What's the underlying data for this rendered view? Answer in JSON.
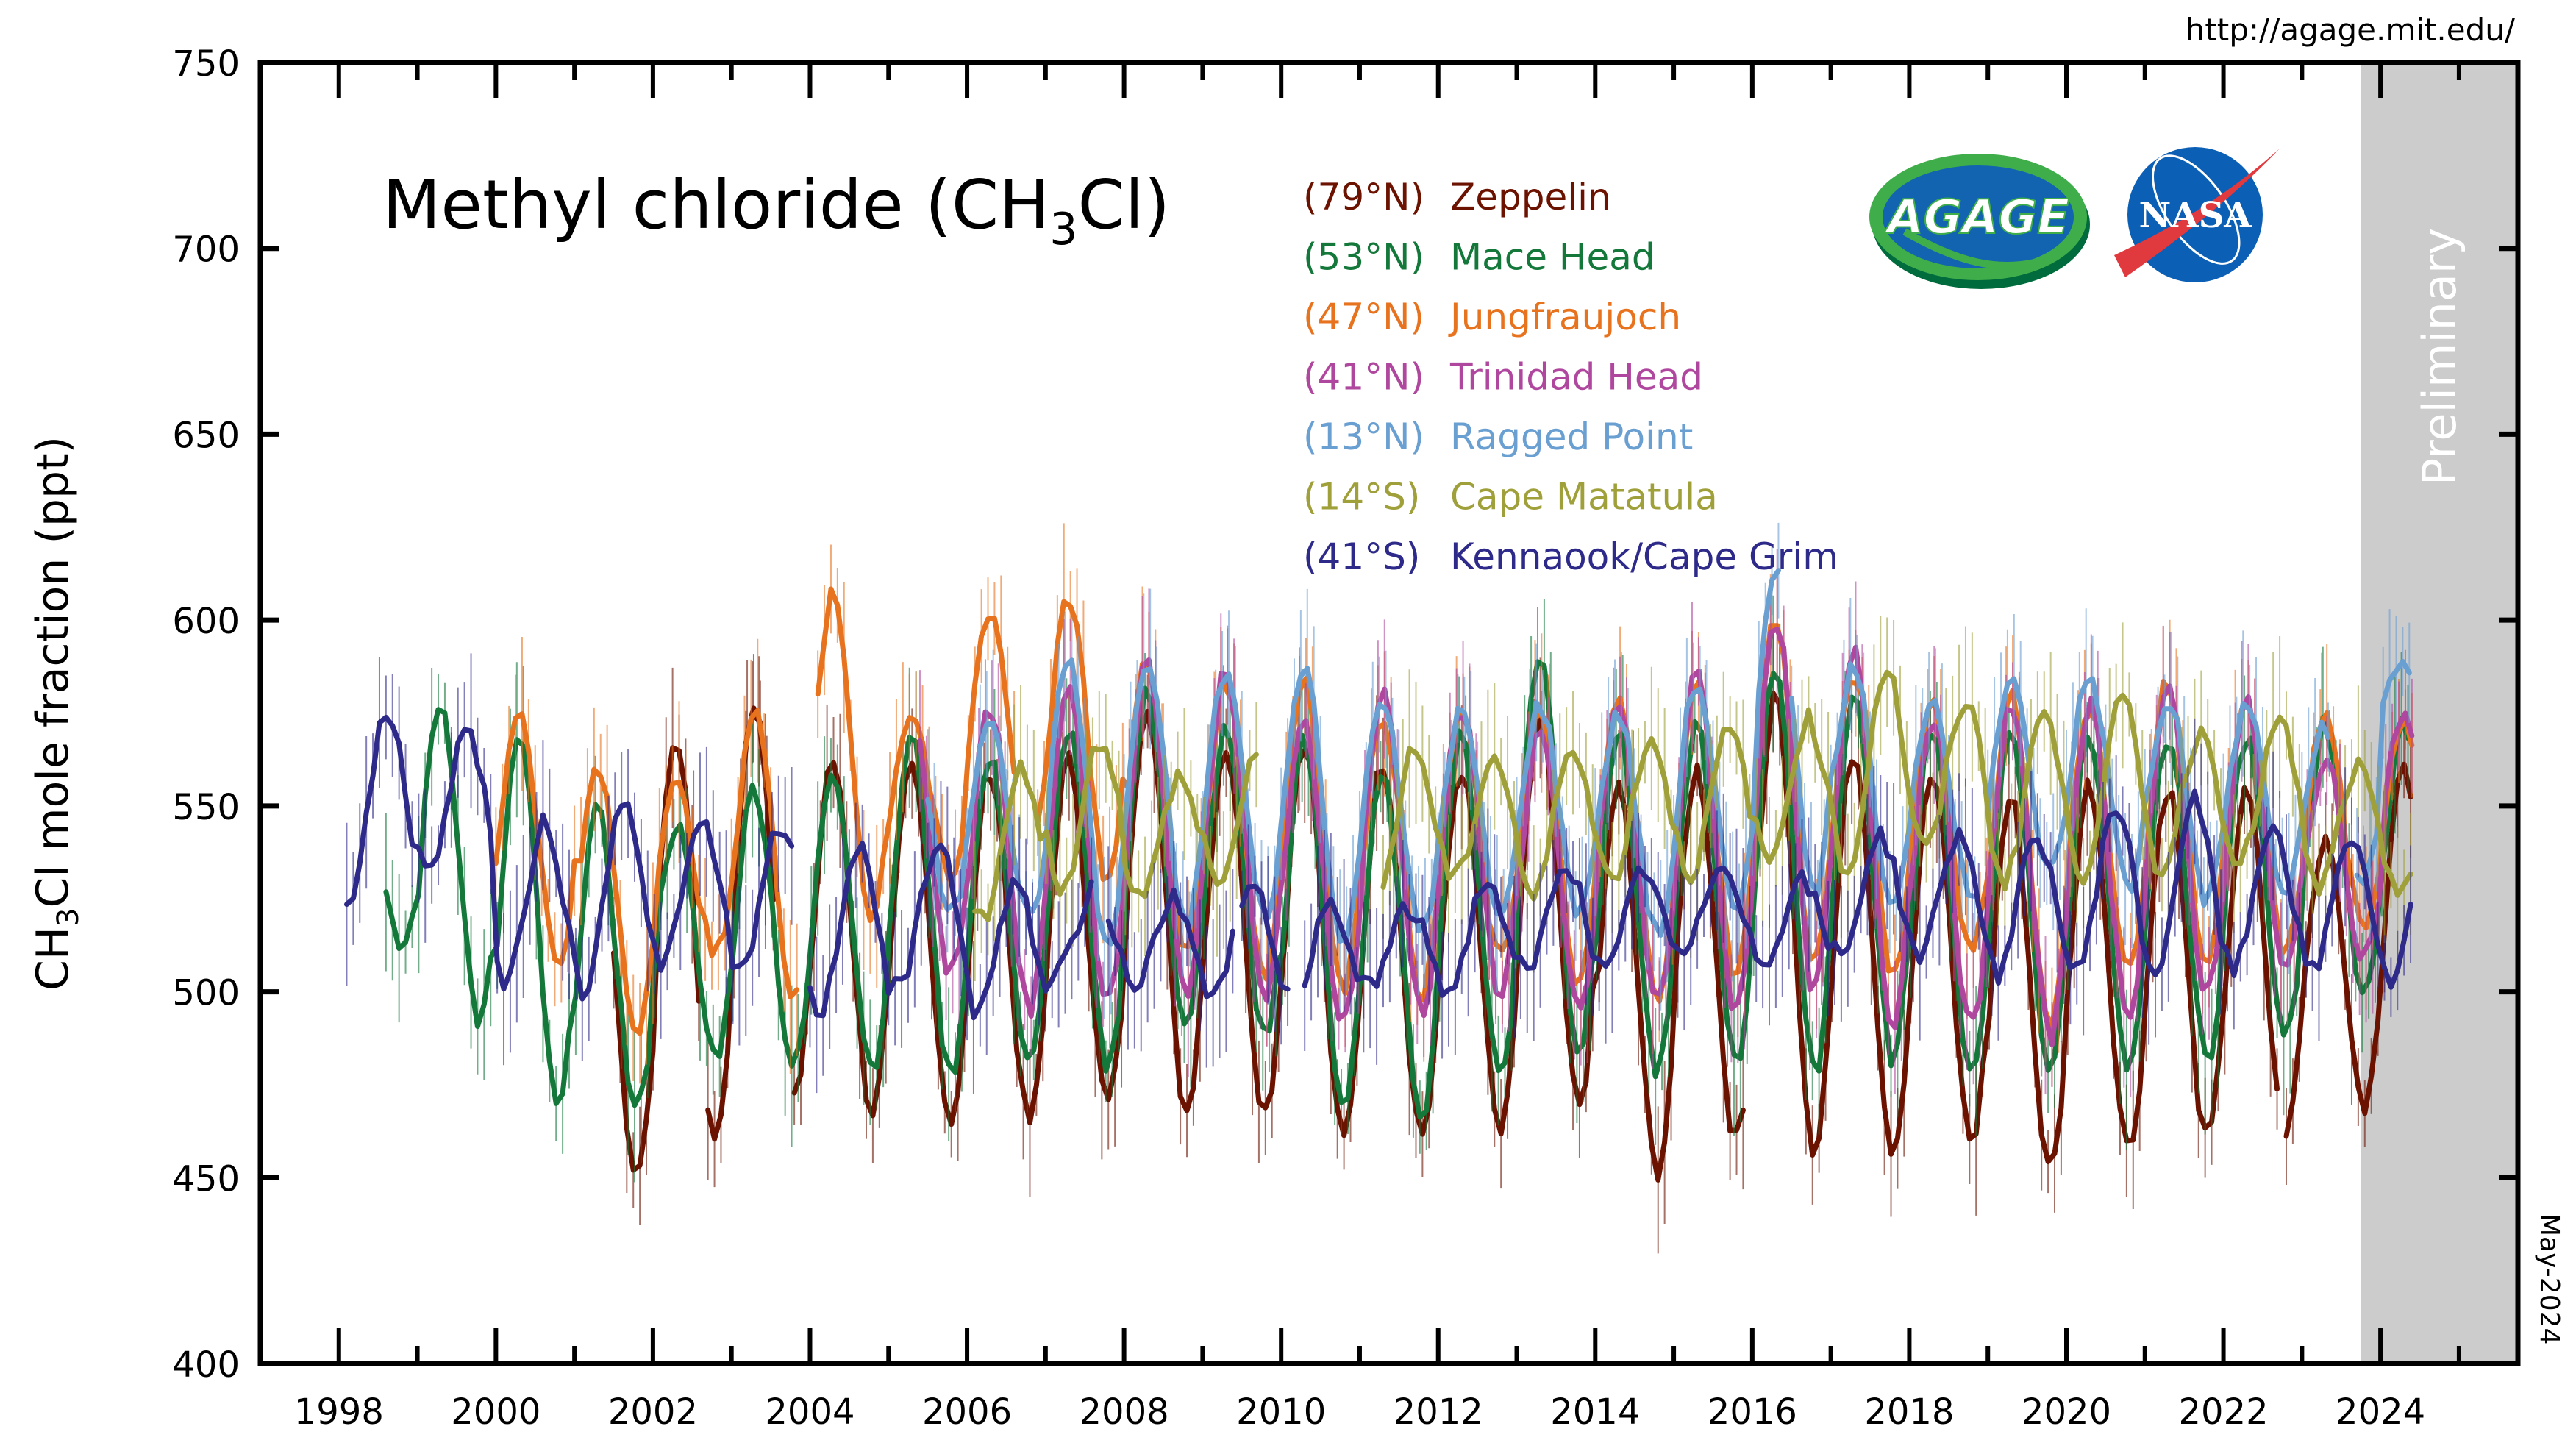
{
  "url": "http://agage.mit.edu/",
  "date_stamp": "May-2024",
  "logos": {
    "agage": "AGAGE",
    "nasa": "NASA"
  },
  "chart_data": {
    "type": "line",
    "title": "Methyl chloride (CH3Cl)",
    "title_parts": {
      "pre": "Methyl chloride (CH",
      "sub": "3",
      "post": "Cl)"
    },
    "ylabel_parts": {
      "pre": "CH",
      "sub": "3",
      "post": "Cl mole fraction (ppt)"
    },
    "xlabel": "",
    "xlim": [
      1997.0,
      2025.75
    ],
    "ylim": [
      400,
      750
    ],
    "yticks": [
      400,
      450,
      500,
      550,
      600,
      650,
      700,
      750
    ],
    "xticks": [
      1998,
      2000,
      2002,
      2004,
      2006,
      2008,
      2010,
      2012,
      2014,
      2016,
      2018,
      2020,
      2022,
      2024
    ],
    "grid": false,
    "legend_placement": "top-center",
    "preliminary": {
      "label": "Preliminary",
      "from": 2023.75,
      "color": "#cccccc"
    },
    "series": [
      {
        "name": "Zeppelin",
        "lat": "(79°N)",
        "color": "#6b1200",
        "peak_month": 4,
        "segments": [
          [
            2001.5,
            2002.6
          ],
          [
            2002.7,
            2003.6
          ],
          [
            2003.1,
            2003.5
          ],
          [
            2003.8,
            2015.9
          ],
          [
            2016.1,
            2022.7
          ],
          [
            2022.8,
            2024.4
          ]
        ],
        "yearly": {
          "2001": [
            545,
            452
          ],
          "2002": [
            568,
            460
          ],
          "2003": [
            578,
            470
          ],
          "2004": [
            562,
            468
          ],
          "2005": [
            560,
            466
          ],
          "2006": [
            560,
            465
          ],
          "2007": [
            562,
            470
          ],
          "2008": [
            578,
            468
          ],
          "2009": [
            566,
            468
          ],
          "2010": [
            568,
            460
          ],
          "2011": [
            562,
            462
          ],
          "2012": [
            560,
            462
          ],
          "2013": [
            572,
            470
          ],
          "2014": [
            555,
            452
          ],
          "2015": [
            560,
            460
          ],
          "2016": [
            580,
            458
          ],
          "2017": [
            565,
            458
          ],
          "2018": [
            558,
            460
          ],
          "2019": [
            552,
            452
          ],
          "2020": [
            556,
            458
          ],
          "2021": [
            555,
            460
          ],
          "2022": [
            553,
            462
          ],
          "2023": [
            540,
            470
          ],
          "2024": [
            562,
            470
          ]
        }
      },
      {
        "name": "Mace Head",
        "lat": "(53°N)",
        "color": "#13783a",
        "peak_month": 4,
        "segments": [
          [
            1998.6,
            2024.4
          ]
        ],
        "yearly": {
          "1998": [
            552,
            512
          ],
          "1999": [
            578,
            492
          ],
          "2000": [
            568,
            468
          ],
          "2001": [
            548,
            468
          ],
          "2002": [
            545,
            483
          ],
          "2003": [
            555,
            480
          ],
          "2004": [
            560,
            480
          ],
          "2005": [
            568,
            478
          ],
          "2006": [
            562,
            480
          ],
          "2007": [
            570,
            480
          ],
          "2008": [
            580,
            490
          ],
          "2009": [
            570,
            488
          ],
          "2010": [
            567,
            470
          ],
          "2011": [
            557,
            468
          ],
          "2012": [
            568,
            478
          ],
          "2013": [
            591,
            484
          ],
          "2014": [
            570,
            478
          ],
          "2015": [
            572,
            480
          ],
          "2016": [
            588,
            478
          ],
          "2017": [
            580,
            482
          ],
          "2018": [
            572,
            476
          ],
          "2019": [
            568,
            480
          ],
          "2020": [
            570,
            478
          ],
          "2021": [
            568,
            482
          ],
          "2022": [
            568,
            490
          ],
          "2023": [
            572,
            498
          ],
          "2024": [
            571,
            500
          ]
        }
      },
      {
        "name": "Jungfraujoch",
        "lat": "(47°N)",
        "color": "#e8731e",
        "peak_month": 4,
        "segments": [
          [
            2000.0,
            2003.9
          ],
          [
            2004.1,
            2006.6
          ],
          [
            2006.9,
            2024.4
          ]
        ],
        "yearly": {
          "2000": [
            576,
            508
          ],
          "2001": [
            560,
            490
          ],
          "2002": [
            555,
            510
          ],
          "2003": [
            576,
            500
          ],
          "2004": [
            606,
            520
          ],
          "2005": [
            575,
            530
          ],
          "2006": [
            603,
            538
          ],
          "2007": [
            607,
            530
          ],
          "2008": [
            590,
            510
          ],
          "2009": [
            584,
            505
          ],
          "2010": [
            585,
            500
          ],
          "2011": [
            575,
            500
          ],
          "2012": [
            575,
            508
          ],
          "2013": [
            575,
            502
          ],
          "2014": [
            578,
            500
          ],
          "2015": [
            582,
            505
          ],
          "2016": [
            600,
            508
          ],
          "2017": [
            586,
            505
          ],
          "2018": [
            578,
            510
          ],
          "2019": [
            580,
            490
          ],
          "2020": [
            578,
            505
          ],
          "2021": [
            583,
            508
          ],
          "2022": [
            576,
            510
          ],
          "2023": [
            574,
            515
          ],
          "2024": [
            574,
            520
          ]
        }
      },
      {
        "name": "Trinidad Head",
        "lat": "(41°N)",
        "color": "#b0479e",
        "peak_month": 4,
        "segments": [
          [
            2005.4,
            2024.4
          ]
        ],
        "yearly": {
          "2005": [
            575,
            505
          ],
          "2006": [
            577,
            495
          ],
          "2007": [
            582,
            498
          ],
          "2008": [
            588,
            500
          ],
          "2009": [
            587,
            498
          ],
          "2010": [
            572,
            492
          ],
          "2011": [
            580,
            495
          ],
          "2012": [
            576,
            500
          ],
          "2013": [
            570,
            495
          ],
          "2014": [
            577,
            497
          ],
          "2015": [
            585,
            495
          ],
          "2016": [
            601,
            500
          ],
          "2017": [
            591,
            492
          ],
          "2018": [
            575,
            490
          ],
          "2019": [
            578,
            488
          ],
          "2020": [
            577,
            495
          ],
          "2021": [
            580,
            500
          ],
          "2022": [
            577,
            505
          ],
          "2023": [
            562,
            510
          ],
          "2024": [
            575,
            520
          ]
        }
      },
      {
        "name": "Ragged Point",
        "lat": "(13°N)",
        "color": "#6a9fd2",
        "peak_month": 4,
        "segments": [
          [
            2005.5,
            2016.4
          ],
          [
            2016.5,
            2018.9
          ],
          [
            2019.0,
            2023.4
          ],
          [
            2023.7,
            2024.4
          ]
        ],
        "yearly": {
          "2005": [
            572,
            520
          ],
          "2006": [
            575,
            520
          ],
          "2007": [
            590,
            512
          ],
          "2008": [
            588,
            518
          ],
          "2009": [
            586,
            520
          ],
          "2010": [
            588,
            512
          ],
          "2011": [
            580,
            515
          ],
          "2012": [
            575,
            520
          ],
          "2013": [
            577,
            522
          ],
          "2014": [
            575,
            515
          ],
          "2015": [
            583,
            520
          ],
          "2016": [
            615,
            525
          ],
          "2017": [
            588,
            522
          ],
          "2018": [
            580,
            525
          ],
          "2019": [
            583,
            532
          ],
          "2020": [
            585,
            528
          ],
          "2021": [
            579,
            525
          ],
          "2022": [
            577,
            526
          ],
          "2023": [
            572,
            530
          ],
          "2024": [
            587,
            565
          ]
        }
      },
      {
        "name": "Cape Matatula",
        "lat": "(14°S)",
        "color": "#9fa03a",
        "peak_month": 9,
        "segments": [
          [
            2006.1,
            2009.7
          ],
          [
            2011.3,
            2024.4
          ]
        ],
        "yearly": {
          "2006": [
            560,
            520
          ],
          "2007": [
            568,
            528
          ],
          "2008": [
            558,
            525
          ],
          "2009": [
            563,
            530
          ],
          "2011": [
            565,
            525
          ],
          "2012": [
            563,
            530
          ],
          "2013": [
            567,
            525
          ],
          "2014": [
            568,
            530
          ],
          "2015": [
            570,
            532
          ],
          "2016": [
            573,
            535
          ],
          "2017": [
            587,
            532
          ],
          "2018": [
            578,
            538
          ],
          "2019": [
            575,
            530
          ],
          "2020": [
            578,
            532
          ],
          "2021": [
            570,
            533
          ],
          "2022": [
            572,
            535
          ],
          "2023": [
            560,
            528
          ],
          "2024": [
            553,
            527
          ]
        }
      },
      {
        "name": "Kennaook/Cape Grim",
        "lat": "(41°S)",
        "color": "#2e2a8a",
        "peak_month": 8,
        "segments": [
          [
            1998.1,
            2003.8
          ],
          [
            2004.0,
            2007.6
          ],
          [
            2007.8,
            2009.4
          ],
          [
            2009.5,
            2010.1
          ],
          [
            2010.3,
            2024.4
          ]
        ],
        "yearly": {
          "1998": [
            575,
            526
          ],
          "1999": [
            570,
            532
          ],
          "2000": [
            545,
            502
          ],
          "2001": [
            553,
            500
          ],
          "2002": [
            545,
            508
          ],
          "2003": [
            545,
            505
          ],
          "2004": [
            540,
            495
          ],
          "2005": [
            540,
            500
          ],
          "2006": [
            528,
            495
          ],
          "2007": [
            527,
            505
          ],
          "2008": [
            525,
            502
          ],
          "2009": [
            530,
            500
          ],
          "2010": [
            522,
            498
          ],
          "2011": [
            522,
            502
          ],
          "2012": [
            530,
            500
          ],
          "2013": [
            535,
            505
          ],
          "2014": [
            533,
            505
          ],
          "2015": [
            535,
            510
          ],
          "2016": [
            530,
            507
          ],
          "2017": [
            542,
            510
          ],
          "2018": [
            542,
            510
          ],
          "2019": [
            542,
            505
          ],
          "2020": [
            550,
            505
          ],
          "2021": [
            551,
            505
          ],
          "2022": [
            545,
            506
          ],
          "2023": [
            542,
            505
          ],
          "2024": [
            540,
            502
          ]
        }
      }
    ]
  }
}
